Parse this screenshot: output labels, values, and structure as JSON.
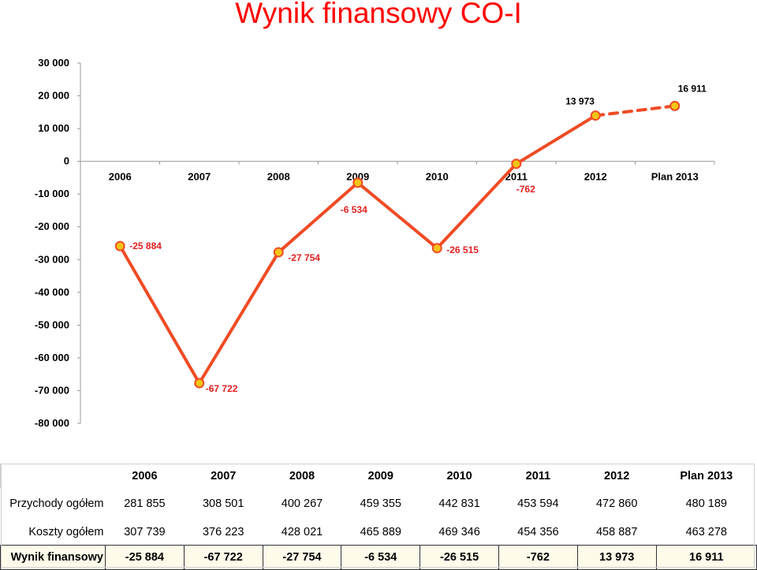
{
  "title": "Wynik finansowy CO-I",
  "colors": {
    "line": "#f04b24",
    "marker": "#f5c518",
    "title": "#ff0000"
  },
  "chart_data": {
    "type": "line",
    "categories": [
      "2006",
      "2007",
      "2008",
      "2009",
      "2010",
      "2011",
      "2012",
      "Plan 2013"
    ],
    "series": [
      {
        "values": [
          -25884,
          -67722,
          -27754,
          -6534,
          -26515,
          -762,
          13973,
          16911
        ],
        "labels": [
          "-25 884",
          "-67 722",
          "-27 754",
          "-6 534",
          "-26 515",
          "-762",
          "13 973",
          "16 911"
        ],
        "dashed_last_segment": true
      }
    ],
    "ylim": [
      -80000,
      30000
    ],
    "yticks": [
      30000,
      20000,
      10000,
      0,
      -10000,
      -20000,
      -30000,
      -40000,
      -50000,
      -60000,
      -70000,
      -80000
    ],
    "ytick_labels": [
      "30 000",
      "20 000",
      "10 000",
      "0",
      "-10 000",
      "-20 000",
      "-30 000",
      "-40 000",
      "-50 000",
      "-60 000",
      "-70 000",
      "-80 000"
    ],
    "xaxis_at": 0,
    "grid": false,
    "legend": "none"
  },
  "table": {
    "header": [
      "2006",
      "2007",
      "2008",
      "2009",
      "2010",
      "2011",
      "2012",
      "Plan 2013"
    ],
    "rows": [
      {
        "label": "Przychody ogółem",
        "values": [
          "281 855",
          "308 501",
          "400 267",
          "459 355",
          "442 831",
          "453 594",
          "472 860",
          "480 189"
        ]
      },
      {
        "label": "Koszty ogółem",
        "values": [
          "307 739",
          "376 223",
          "428 021",
          "465 889",
          "469 346",
          "454 356",
          "458 887",
          "463 278"
        ]
      },
      {
        "label": "Wynik finansowy",
        "values": [
          "-25 884",
          "-67 722",
          "-27 754",
          "-6 534",
          "-26 515",
          "-762",
          "13 973",
          "16 911"
        ]
      }
    ]
  }
}
